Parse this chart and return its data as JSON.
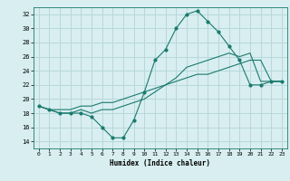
{
  "xlabel": "Humidex (Indice chaleur)",
  "ylabel": "",
  "xlim": [
    -0.5,
    23.5
  ],
  "ylim": [
    13,
    33
  ],
  "yticks": [
    14,
    16,
    18,
    20,
    22,
    24,
    26,
    28,
    30,
    32
  ],
  "xticks": [
    0,
    1,
    2,
    3,
    4,
    5,
    6,
    7,
    8,
    9,
    10,
    11,
    12,
    13,
    14,
    15,
    16,
    17,
    18,
    19,
    20,
    21,
    22,
    23
  ],
  "bg_color": "#d8eef0",
  "grid_color": "#b8d8dc",
  "line_color": "#1a7a6e",
  "series1_x": [
    0,
    1,
    2,
    3,
    4,
    5,
    6,
    7,
    8,
    9,
    10,
    11,
    12,
    13,
    14,
    15,
    16,
    17,
    18,
    19,
    20,
    21,
    22,
    23
  ],
  "series1_y": [
    19.0,
    18.5,
    18.0,
    18.0,
    18.0,
    17.5,
    16.0,
    14.5,
    14.5,
    17.0,
    21.0,
    25.5,
    27.0,
    30.0,
    32.0,
    32.5,
    31.0,
    29.5,
    27.5,
    25.5,
    22.0,
    22.0,
    22.5,
    22.5
  ],
  "series2_x": [
    0,
    1,
    2,
    3,
    4,
    5,
    6,
    7,
    8,
    9,
    10,
    11,
    12,
    13,
    14,
    15,
    16,
    17,
    18,
    19,
    20,
    21,
    22,
    23
  ],
  "series2_y": [
    19.0,
    18.5,
    18.5,
    18.5,
    19.0,
    19.0,
    19.5,
    19.5,
    20.0,
    20.5,
    21.0,
    21.5,
    22.0,
    22.5,
    23.0,
    23.5,
    23.5,
    24.0,
    24.5,
    25.0,
    25.5,
    25.5,
    22.5,
    22.5
  ],
  "series3_x": [
    0,
    1,
    2,
    3,
    4,
    5,
    6,
    7,
    8,
    9,
    10,
    11,
    12,
    13,
    14,
    15,
    16,
    17,
    18,
    19,
    20,
    21,
    22,
    23
  ],
  "series3_y": [
    19.0,
    18.5,
    18.0,
    18.0,
    18.5,
    18.0,
    18.5,
    18.5,
    19.0,
    19.5,
    20.0,
    21.0,
    22.0,
    23.0,
    24.5,
    25.0,
    25.5,
    26.0,
    26.5,
    26.0,
    26.5,
    22.5,
    22.5,
    22.5
  ]
}
